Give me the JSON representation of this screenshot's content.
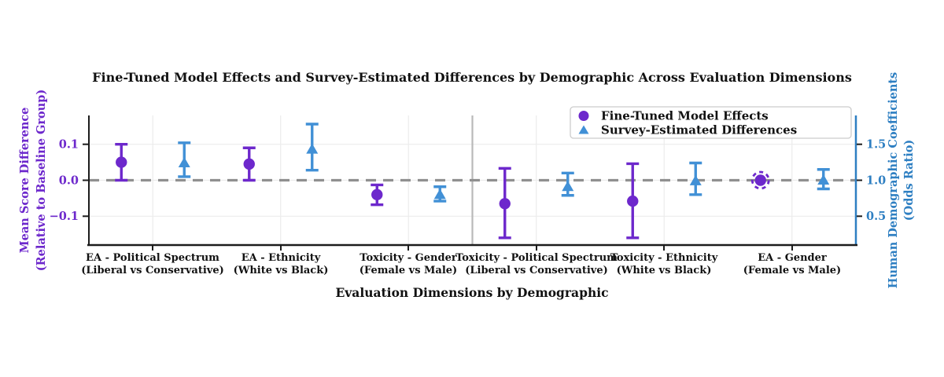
{
  "title": "Fine-Tuned Model Effects and Survey-Estimated Differences by Demographic Across Evaluation Dimensions",
  "legend": {
    "items": [
      {
        "label": "Fine-Tuned Model Effects",
        "marker": "circle-icon",
        "color": "#6d28cc"
      },
      {
        "label": "Survey-Estimated Differences",
        "marker": "triangle-icon",
        "color": "#4190d6"
      }
    ]
  },
  "chart_data": {
    "type": "scatter",
    "title": "Fine-Tuned Model Effects and Survey-Estimated Differences by Demographic Across Evaluation Dimensions",
    "xlabel": "Evaluation Dimensions by Demographic",
    "grid": true,
    "legend_position": "upper right",
    "baseline": {
      "left_value": 0.0,
      "right_value": 1.0,
      "color": "#909090",
      "style": "dashed"
    },
    "separator_after_category": 3,
    "left_axis": {
      "label_line1": "Mean Score Difference",
      "label_line2": "(Relative to Baseline Group)",
      "ticks": [
        "0.1",
        "0.0",
        "−0.1"
      ],
      "tick_values": [
        0.1,
        0.0,
        -0.1
      ],
      "ylim": [
        -0.18,
        0.18
      ],
      "color": "#6d28cc"
    },
    "right_axis": {
      "label_line1": "Human Demographic Coefficients",
      "label_line2": "(Odds Ratio)",
      "ticks": [
        "1.5",
        "1.0",
        "0.5"
      ],
      "tick_values": [
        1.5,
        1.0,
        0.5
      ],
      "ylim": [
        0.1,
        1.9
      ],
      "color": "#2e7fc2"
    },
    "categories": [
      {
        "line1": "EA - Political Spectrum",
        "line2": "(Liberal vs Conservative)"
      },
      {
        "line1": "EA - Ethnicity",
        "line2": "(White vs Black)"
      },
      {
        "line1": "Toxicity - Gender",
        "line2": "(Female vs Male)"
      },
      {
        "line1": "Toxicity - Political Spectrum",
        "line2": "(Liberal vs Conservative)"
      },
      {
        "line1": "Toxicity - Ethnicity",
        "line2": "(White vs Black)"
      },
      {
        "line1": "EA - Gender",
        "line2": "(Female vs Male)"
      }
    ],
    "series": [
      {
        "name": "Fine-Tuned Model Effects",
        "axis": "left",
        "marker": "circle",
        "color": "#6d28cc",
        "offset": -40,
        "points": [
          {
            "value": 0.05,
            "ci": [
              0.0,
              0.1
            ]
          },
          {
            "value": 0.045,
            "ci": [
              0.0,
              0.09
            ]
          },
          {
            "value": -0.04,
            "ci": [
              -0.068,
              -0.013
            ]
          },
          {
            "value": -0.065,
            "ci": [
              -0.16,
              0.033
            ]
          },
          {
            "value": -0.058,
            "ci": [
              -0.16,
              0.046
            ]
          },
          {
            "value": 0.0,
            "ci": [
              -0.012,
              0.012
            ],
            "style": "dashed"
          }
        ]
      },
      {
        "name": "Survey-Estimated Differences",
        "axis": "right",
        "marker": "triangle",
        "color": "#4190d6",
        "offset": 40,
        "points": [
          {
            "value": 1.24,
            "ci": [
              1.05,
              1.52
            ]
          },
          {
            "value": 1.43,
            "ci": [
              1.14,
              1.78
            ]
          },
          {
            "value": 0.8,
            "ci": [
              0.71,
              0.91
            ]
          },
          {
            "value": 0.91,
            "ci": [
              0.79,
              1.1
            ]
          },
          {
            "value": 0.99,
            "ci": [
              0.8,
              1.24
            ]
          },
          {
            "value": 1.0,
            "ci": [
              0.88,
              1.15
            ]
          }
        ]
      }
    ],
    "style": {
      "grid_color": "#ececec",
      "separator_color": "#b9b9b9",
      "spine_color": "#1c1c1c"
    }
  }
}
